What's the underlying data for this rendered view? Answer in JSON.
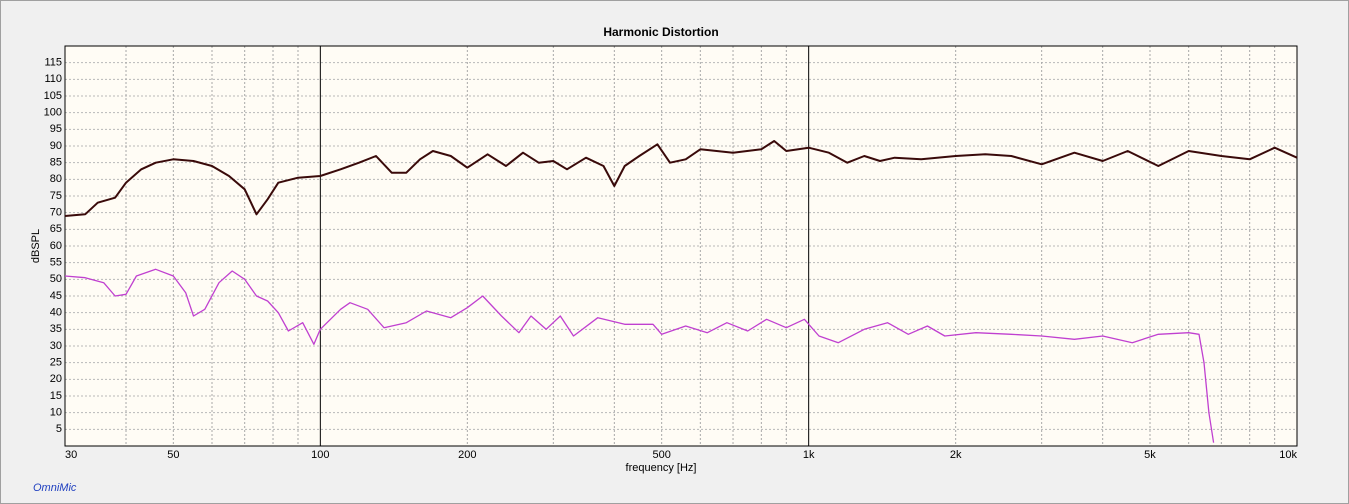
{
  "chart_data": {
    "type": "line",
    "title": "Harmonic Distortion",
    "xlabel": "frequency [Hz]",
    "ylabel": "dBSPL",
    "footer": "OmniMic",
    "xscale": "log",
    "grid": true,
    "xlim": [
      30,
      10000
    ],
    "xticks": [
      30,
      50,
      100,
      200,
      500,
      {
        "value": 1000,
        "label": "1k"
      },
      {
        "value": 2000,
        "label": "2k"
      },
      {
        "value": 5000,
        "label": "5k"
      },
      {
        "value": 10000,
        "label": "10k"
      }
    ],
    "xgrid": [
      40,
      60,
      70,
      80,
      90,
      300,
      400,
      600,
      700,
      800,
      900,
      3000,
      4000,
      6000,
      7000,
      8000,
      9000
    ],
    "ylim": [
      0,
      120
    ],
    "yticks": [
      5,
      10,
      15,
      20,
      25,
      30,
      35,
      40,
      45,
      50,
      55,
      60,
      65,
      70,
      75,
      80,
      85,
      90,
      95,
      100,
      105,
      110,
      115
    ],
    "series": [
      {
        "color": "#3a0a0a",
        "x": [
          30,
          33,
          35,
          38,
          40,
          43,
          46,
          50,
          55,
          60,
          65,
          70,
          74,
          78,
          82,
          90,
          100,
          110,
          120,
          130,
          140,
          150,
          160,
          170,
          185,
          200,
          220,
          240,
          260,
          280,
          300,
          320,
          350,
          380,
          400,
          420,
          450,
          490,
          520,
          560,
          600,
          700,
          800,
          850,
          900,
          1000,
          1100,
          1200,
          1300,
          1400,
          1500,
          1700,
          2000,
          2300,
          2600,
          3000,
          3500,
          4000,
          4500,
          5200,
          6000,
          7000,
          8000,
          9000,
          10000
        ],
        "values": [
          69,
          69.5,
          73,
          74.5,
          79,
          83,
          85,
          86,
          85.5,
          84,
          81,
          77,
          69.5,
          74,
          79,
          80.5,
          81,
          83,
          85,
          87,
          82,
          82,
          86,
          88.5,
          87,
          83.5,
          87.5,
          84,
          88,
          85,
          85.5,
          83,
          86.5,
          84,
          78,
          84,
          87,
          90.5,
          85,
          86,
          89,
          88,
          89,
          91.5,
          88.5,
          89.5,
          88,
          85,
          87,
          85.5,
          86.5,
          86,
          87,
          87.5,
          87,
          84.5,
          88,
          85.5,
          88.5,
          84,
          88.5,
          87,
          86,
          89.5,
          86.5
        ]
      },
      {
        "color": "#c040d0",
        "x": [
          30,
          33,
          36,
          38,
          40,
          42,
          46,
          50,
          53,
          55,
          58,
          62,
          66,
          70,
          74,
          78,
          82,
          86,
          92,
          97,
          100,
          110,
          115,
          125,
          135,
          150,
          165,
          185,
          200,
          215,
          235,
          255,
          270,
          290,
          310,
          330,
          370,
          420,
          480,
          500,
          560,
          620,
          680,
          750,
          820,
          900,
          980,
          1050,
          1150,
          1300,
          1450,
          1600,
          1750,
          1900,
          2200,
          2600,
          3000,
          3500,
          4000,
          4600,
          5200,
          6000,
          6300,
          6450,
          6600,
          6750
        ],
        "values": [
          51,
          50.5,
          49,
          45,
          45.5,
          51,
          53,
          51,
          46,
          39,
          41,
          49,
          52.5,
          50,
          45,
          43.5,
          40,
          34.5,
          37,
          30.5,
          35,
          41,
          43,
          41,
          35.5,
          37,
          40.5,
          38.5,
          41.5,
          45,
          39,
          34,
          39,
          35,
          39,
          33,
          38.5,
          36.5,
          36.5,
          33.5,
          36,
          34,
          37,
          34.5,
          38,
          35.5,
          38,
          33,
          31,
          35,
          37,
          33.5,
          36,
          33,
          34,
          33.5,
          33,
          32,
          33,
          31,
          33.5,
          34,
          33.5,
          25,
          10,
          1
        ]
      }
    ]
  }
}
